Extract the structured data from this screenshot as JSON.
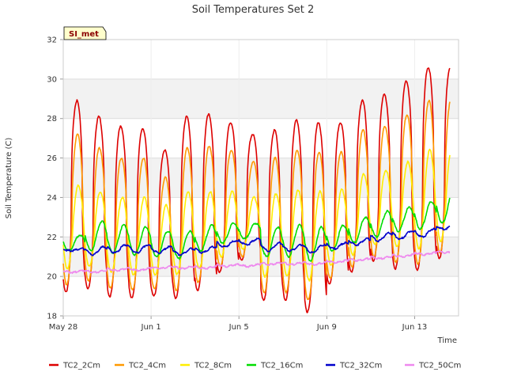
{
  "chart_data": {
    "type": "line",
    "title": "Soil Temperatures Set 2",
    "xlabel": "Time",
    "ylabel": "Soil Temperature (C)",
    "badge": "SI_met",
    "x_range": [
      "2024-05-28",
      "2024-06-15"
    ],
    "x_ticks": [
      {
        "date": "2024-05-28",
        "label": "May 28"
      },
      {
        "date": "2024-06-01",
        "label": "Jun 1"
      },
      {
        "date": "2024-06-05",
        "label": "Jun 5"
      },
      {
        "date": "2024-06-09",
        "label": "Jun 9"
      },
      {
        "date": "2024-06-13",
        "label": "Jun 13"
      }
    ],
    "ylim": [
      18,
      32
    ],
    "y_ticks": [
      18,
      20,
      22,
      24,
      26,
      28,
      30,
      32
    ],
    "banded_background": true,
    "band_color": "#f2f2f2",
    "legend_position": "bottom",
    "start_date": "2024-05-28",
    "end_date": "2024-06-14.6",
    "series": [
      {
        "name": "TC2_2Cm",
        "color": "#dd0000",
        "daily_min": [
          19.2,
          19.4,
          19.0,
          18.9,
          19.0,
          18.9,
          19.3,
          20.2,
          20.8,
          18.8,
          18.8,
          18.2,
          19.6,
          20.2,
          20.8,
          20.4,
          20.3,
          20.9,
          24.0
        ],
        "daily_max": [
          28.9,
          28.1,
          27.6,
          27.5,
          26.4,
          28.1,
          28.2,
          27.8,
          27.2,
          27.4,
          27.9,
          27.8,
          27.8,
          28.9,
          29.2,
          29.9,
          30.6,
          30.6,
          30.6
        ]
      },
      {
        "name": "TC2_4Cm",
        "color": "#ff9900",
        "daily_min": [
          19.6,
          19.8,
          19.4,
          19.3,
          19.4,
          19.3,
          19.7,
          20.5,
          21.0,
          19.2,
          19.2,
          18.8,
          19.9,
          20.5,
          21.0,
          20.7,
          20.6,
          21.2,
          24.2
        ],
        "daily_max": [
          27.2,
          26.5,
          26.0,
          26.0,
          25.0,
          26.5,
          26.6,
          26.4,
          25.8,
          26.0,
          26.4,
          26.3,
          26.3,
          27.4,
          27.6,
          28.2,
          28.9,
          28.9,
          28.9
        ]
      },
      {
        "name": "TC2_8Cm",
        "color": "#ffee00",
        "daily_min": [
          20.4,
          20.5,
          20.2,
          20.1,
          20.1,
          20.1,
          20.4,
          21.0,
          21.4,
          20.0,
          20.0,
          19.8,
          20.6,
          21.1,
          21.6,
          21.5,
          21.4,
          21.8,
          24.3
        ],
        "daily_max": [
          24.6,
          24.3,
          24.0,
          24.0,
          23.6,
          24.3,
          24.3,
          24.3,
          24.0,
          24.2,
          24.4,
          24.3,
          24.4,
          25.2,
          25.4,
          25.8,
          26.4,
          26.4,
          26.4
        ]
      },
      {
        "name": "TC2_16Cm",
        "color": "#00dd00",
        "daily_min": [
          21.3,
          21.3,
          21.2,
          21.1,
          21.0,
          20.9,
          21.3,
          21.7,
          21.9,
          21.0,
          21.0,
          20.8,
          21.3,
          21.7,
          22.0,
          22.3,
          22.4,
          22.7,
          24.3
        ],
        "daily_max": [
          22.1,
          22.8,
          22.6,
          22.5,
          22.3,
          22.3,
          22.6,
          22.7,
          22.7,
          22.5,
          22.6,
          22.5,
          22.6,
          23.0,
          23.3,
          23.5,
          23.8,
          24.3,
          24.4
        ]
      },
      {
        "name": "TC2_32Cm",
        "color": "#0000cc",
        "daily_min": [
          21.3,
          21.1,
          21.2,
          21.2,
          21.2,
          21.1,
          21.2,
          21.5,
          21.6,
          21.3,
          21.3,
          21.2,
          21.4,
          21.6,
          21.8,
          21.9,
          22.0,
          22.4,
          22.8
        ],
        "daily_max": [
          21.4,
          21.5,
          21.6,
          21.6,
          21.5,
          21.4,
          21.5,
          21.8,
          21.9,
          21.7,
          21.6,
          21.6,
          21.7,
          21.9,
          22.2,
          22.3,
          22.4,
          22.6,
          22.9
        ]
      },
      {
        "name": "TC2_50Cm",
        "color": "#ee88ee",
        "daily_min": [
          20.2,
          20.2,
          20.3,
          20.3,
          20.4,
          20.4,
          20.4,
          20.5,
          20.5,
          20.6,
          20.6,
          20.6,
          20.7,
          20.8,
          20.9,
          21.0,
          21.1,
          21.2,
          21.3
        ],
        "daily_max": [
          20.3,
          20.3,
          20.4,
          20.4,
          20.5,
          20.5,
          20.5,
          20.6,
          20.6,
          20.7,
          20.7,
          20.7,
          20.8,
          20.9,
          21.0,
          21.1,
          21.2,
          21.3,
          21.3
        ]
      }
    ]
  }
}
